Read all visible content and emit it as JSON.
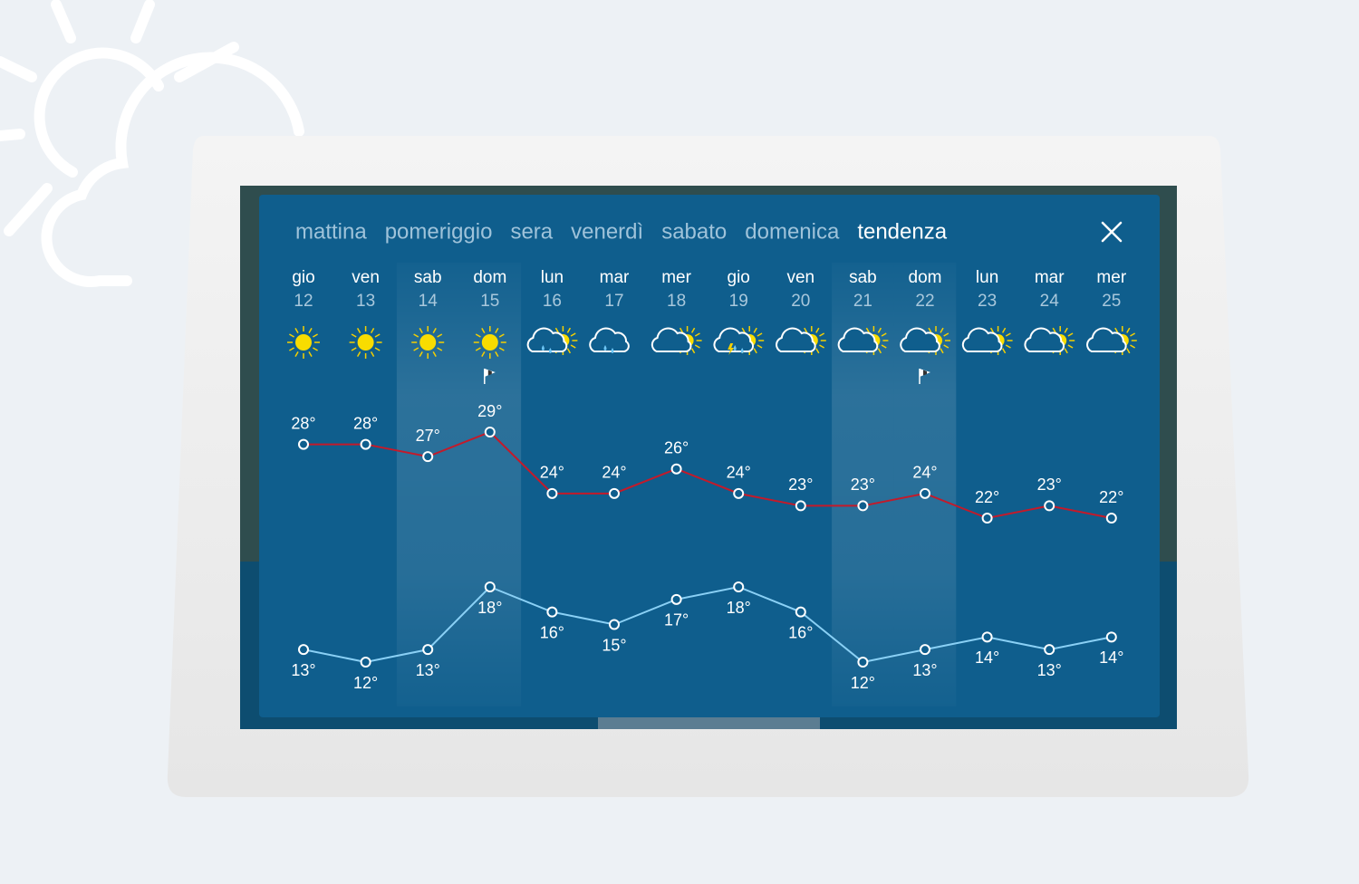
{
  "tabs": [
    "mattina",
    "pomeriggio",
    "sera",
    "venerdì",
    "sabato",
    "domenica",
    "tendenza"
  ],
  "active_tab": 6,
  "chart_data": {
    "type": "line",
    "categories": [
      "gio",
      "ven",
      "sab",
      "dom",
      "lun",
      "mar",
      "mer",
      "gio",
      "ven",
      "sab",
      "dom",
      "lun",
      "mar",
      "mer"
    ],
    "dates": [
      12,
      13,
      14,
      15,
      16,
      17,
      18,
      19,
      20,
      21,
      22,
      23,
      24,
      25
    ],
    "icons": [
      "sun",
      "sun",
      "sun",
      "sun",
      "cloud-rain-sun",
      "cloud-rain",
      "cloud-sun",
      "cloud-storm-sun",
      "cloud-sun",
      "cloud-sun",
      "cloud-sun",
      "cloud-sun",
      "cloud-sun",
      "cloud-sun"
    ],
    "wind": [
      false,
      false,
      false,
      true,
      false,
      false,
      false,
      false,
      false,
      false,
      true,
      false,
      false,
      false
    ],
    "highlight": [
      false,
      false,
      true,
      true,
      false,
      false,
      false,
      false,
      false,
      true,
      true,
      false,
      false,
      false
    ],
    "series": [
      {
        "color": "#c41a2a",
        "values": [
          28,
          28,
          27,
          29,
          24,
          24,
          26,
          24,
          23,
          23,
          24,
          22,
          23,
          22
        ],
        "value_labels": [
          "28°",
          "28°",
          "27°",
          "29°",
          "24°",
          "24°",
          "26°",
          "24°",
          "23°",
          "23°",
          "24°",
          "22°",
          "23°",
          "22°"
        ]
      },
      {
        "color": "#8ad0f5",
        "values": [
          13,
          12,
          13,
          18,
          16,
          15,
          17,
          18,
          16,
          12,
          13,
          14,
          13,
          14
        ],
        "value_labels": [
          "13°",
          "12°",
          "13°",
          "18°",
          "16°",
          "15°",
          "17°",
          "18°",
          "16°",
          "12°",
          "13°",
          "14°",
          "13°",
          "14°"
        ]
      }
    ]
  }
}
